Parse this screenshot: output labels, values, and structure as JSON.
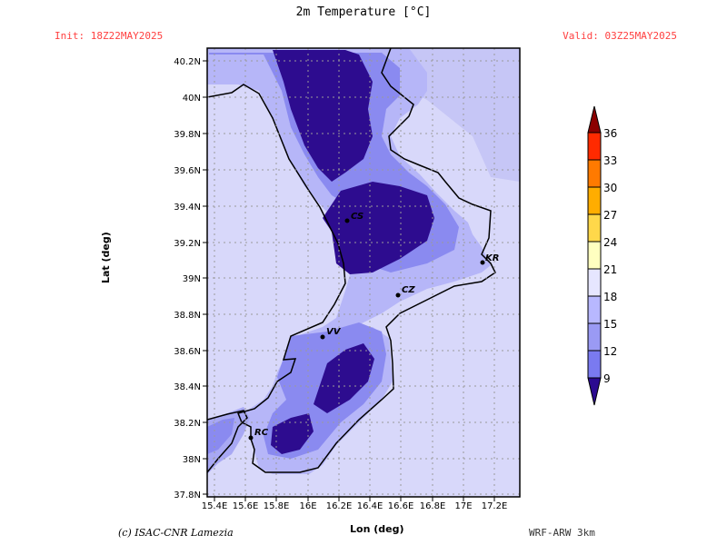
{
  "header": {
    "title": "2m Temperature [°C]",
    "init": "Init: 18Z22MAY2025",
    "valid": "Valid: 03Z25MAY2025"
  },
  "footer": {
    "credit": "(c) ISAC-CNR Lamezia",
    "model": "WRF-ARW 3km"
  },
  "axes": {
    "xlabel": "Lon (deg)",
    "ylabel": "Lat (deg)",
    "xticks": [
      "15.4E",
      "15.6E",
      "15.8E",
      "16E",
      "16.2E",
      "16.4E",
      "16.6E",
      "16.8E",
      "17E",
      "17.2E"
    ],
    "yticks": [
      "40.2N",
      "40N",
      "39.8N",
      "39.6N",
      "39.4N",
      "39.2N",
      "39N",
      "38.8N",
      "38.6N",
      "38.4N",
      "38.2N",
      "38N",
      "37.8N"
    ]
  },
  "colorbar": {
    "levels": [
      "36",
      "33",
      "30",
      "27",
      "24",
      "21",
      "18",
      "15",
      "12",
      "9"
    ],
    "colors": [
      "#8b0000",
      "#ff2a00",
      "#ff7a00",
      "#ffad00",
      "#ffd84a",
      "#ffffc0",
      "#e6e6ff",
      "#b8b8ff",
      "#7a7af0",
      "#2b0a90"
    ]
  },
  "cities": [
    {
      "name": "CS"
    },
    {
      "name": "KR"
    },
    {
      "name": "CZ"
    },
    {
      "name": "VV"
    },
    {
      "name": "RC"
    }
  ]
}
